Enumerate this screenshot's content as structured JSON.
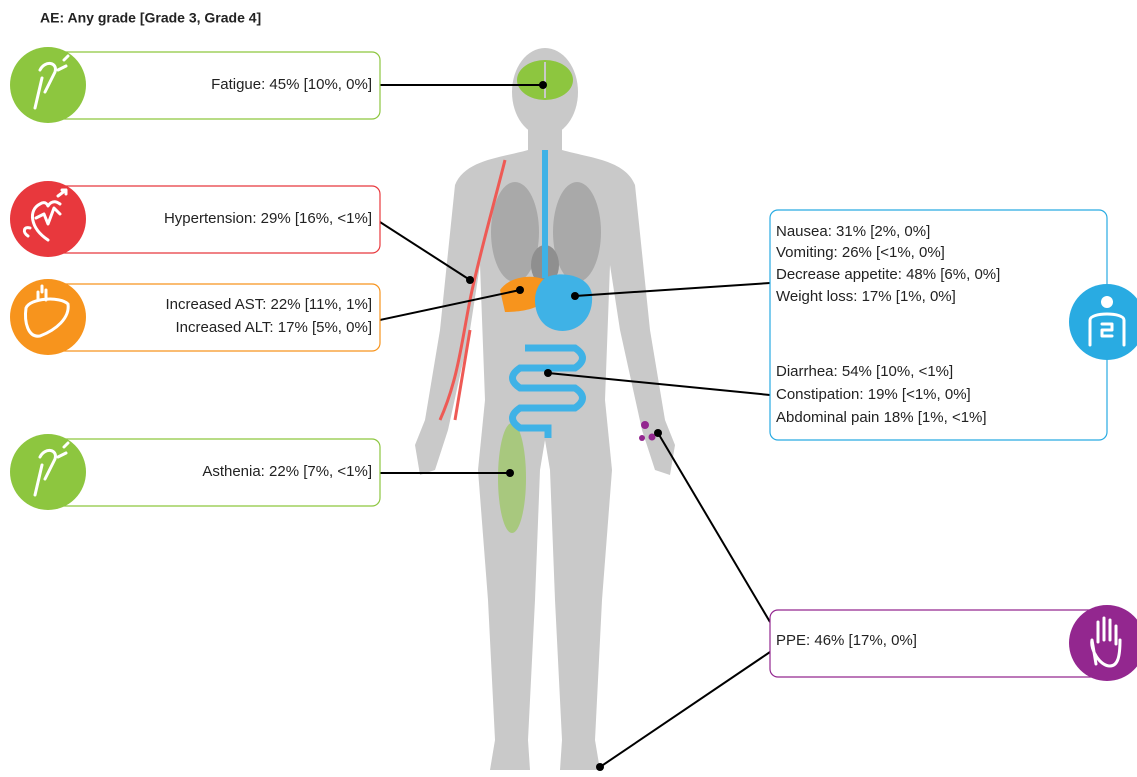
{
  "header": {
    "title": "AE: Any grade [Grade 3, Grade 4]"
  },
  "callouts": [
    {
      "lines": [
        "Fatigue: 45% [10%, 0%]"
      ]
    },
    {
      "lines": [
        "Hypertension: 29% [16%, <1%]"
      ]
    },
    {
      "lines": [
        "Increased AST: 22% [11%, 1%]",
        "Increased ALT: 17% [5%, 0%]"
      ]
    },
    {
      "lines": [
        "Asthenia: 22% [7%, <1%]"
      ]
    },
    {
      "groups": [
        [
          "Nausea: 31% [2%, 0%]",
          "Vomiting: 26% [<1%, 0%]",
          "Decrease appetite: 48% [6%, 0%]",
          "Weight loss: 17% [1%, 0%]"
        ],
        [
          "Diarrhea: 54% [10%, <1%]",
          "Constipation: 19% [<1%, 0%]",
          "Abdominal pain 18% [1%, <1%]"
        ]
      ]
    },
    {
      "lines": [
        "PPE: 46% [17%, 0%]"
      ]
    }
  ]
}
